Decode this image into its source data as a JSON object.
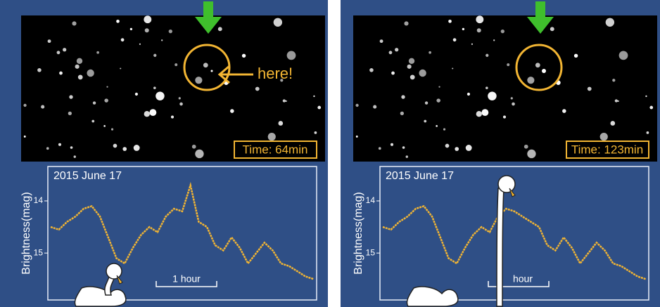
{
  "chart_data": [
    {
      "type": "line",
      "title": "2015 June 17",
      "y_label": "Brightness(mag)",
      "color": "#f2b533",
      "ylim": [
        15.9,
        13.34
      ],
      "yticks": [
        14,
        15
      ],
      "values": [
        14.5,
        14.55,
        14.4,
        14.3,
        14.15,
        14.1,
        14.3,
        14.7,
        15.1,
        15.2,
        14.9,
        14.65,
        14.5,
        14.6,
        14.3,
        14.15,
        14.2,
        13.7,
        14.4,
        14.5,
        14.85,
        14.95,
        14.7,
        14.9,
        15.2,
        15.0,
        14.8,
        14.95,
        15.2,
        15.25,
        15.35,
        15.45,
        15.5
      ],
      "scale_label": "1 hour",
      "time_label": "Time:  64min",
      "pointer_label": "here!"
    },
    {
      "type": "line",
      "title": "2015 June 17",
      "y_label": "Brightness(mag)",
      "color": "#f2b533",
      "ylim": [
        15.9,
        13.34
      ],
      "yticks": [
        14,
        15
      ],
      "values": [
        14.5,
        14.55,
        14.4,
        14.3,
        14.15,
        14.1,
        14.3,
        14.7,
        15.1,
        15.2,
        14.9,
        14.65,
        14.5,
        14.6,
        14.3,
        14.15,
        14.2,
        14.3,
        14.4,
        14.5,
        14.85,
        14.95,
        14.7,
        14.9,
        15.2,
        15.0,
        14.8,
        14.95,
        15.2,
        15.25,
        15.35,
        15.45,
        15.5
      ],
      "scale_label": "hour",
      "time_label": "Time: 123min"
    }
  ]
}
